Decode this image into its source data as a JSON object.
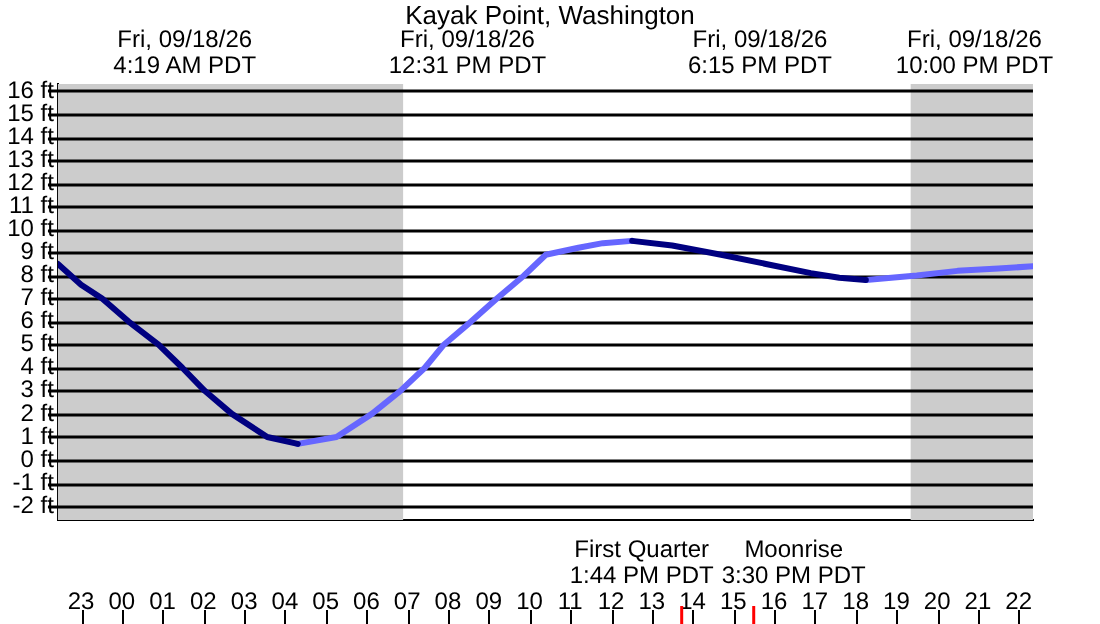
{
  "chart_data": {
    "type": "line",
    "title": "Kayak Point, Washington",
    "series": [
      {
        "color": "#000080",
        "x": [
          "--09-17T22:26",
          "--09-17T23:00",
          "--09-17T23:31",
          "--09-18T00:10",
          "--09-18T00:54",
          "--09-18T01:29",
          "--09-18T02:02",
          "--09-18T02:42",
          "--09-18T03:34",
          "--09-18T04:19",
          "--09-18T04:20",
          "--09-18T12:31",
          "--09-18T13:30",
          "--09-18T14:42",
          "--09-18T15:48",
          "--09-18T16:54",
          "--09-18T17:36",
          "--09-18T18:15"
        ],
        "values": [
          8.5,
          7.6,
          7,
          6,
          5,
          4,
          3,
          2,
          1,
          0.7,
          null,
          9.5,
          9.3,
          8.9,
          8.5,
          8.1,
          7.9,
          7.8
        ]
      },
      {
        "color": "#6666ff",
        "x": [
          "--09-18T04:19",
          "--09-18T05:16",
          "--09-18T06:08",
          "--09-18T06:50",
          "--09-18T07:26",
          "--09-18T07:54",
          "--09-18T08:34",
          "--09-18T09:12",
          "--09-18T09:52",
          "--09-18T10:24",
          "--09-18T11:12",
          "--09-18T11:48",
          "--09-18T12:31",
          "--09-18T12:32",
          "--09-18T18:15",
          "--09-18T19:30",
          "--09-18T20:30",
          "--09-18T21:30",
          "--09-18T22:21"
        ],
        "values": [
          0.7,
          1,
          2,
          3,
          4,
          5,
          6,
          7,
          8,
          8.9,
          9.2,
          9.4,
          9.5,
          null,
          7.8,
          8.0,
          8.2,
          8.3,
          8.4
        ]
      }
    ],
    "xlim": [
      "--09-17T22:26",
      "--09-18T22:21"
    ],
    "xticks": [
      {
        "value": "--09-17T23:00",
        "label": "23"
      },
      {
        "value": "--09-18T00:00",
        "label": "00"
      },
      {
        "value": "--09-18T01:00",
        "label": "01"
      },
      {
        "value": "--09-18T02:00",
        "label": "02"
      },
      {
        "value": "--09-18T03:00",
        "label": "03"
      },
      {
        "value": "--09-18T04:00",
        "label": "04"
      },
      {
        "value": "--09-18T05:00",
        "label": "05"
      },
      {
        "value": "--09-18T06:00",
        "label": "06"
      },
      {
        "value": "--09-18T07:00",
        "label": "07"
      },
      {
        "value": "--09-18T08:00",
        "label": "08"
      },
      {
        "value": "--09-18T09:00",
        "label": "09"
      },
      {
        "value": "--09-18T10:00",
        "label": "10"
      },
      {
        "value": "--09-18T11:00",
        "label": "11"
      },
      {
        "value": "--09-18T12:00",
        "label": "12"
      },
      {
        "value": "--09-18T13:00",
        "label": "13"
      },
      {
        "value": "--09-18T14:00",
        "label": "14"
      },
      {
        "value": "--09-18T15:00",
        "label": "15"
      },
      {
        "value": "--09-18T16:00",
        "label": "16"
      },
      {
        "value": "--09-18T17:00",
        "label": "17"
      },
      {
        "value": "--09-18T18:00",
        "label": "18"
      },
      {
        "value": "--09-18T19:00",
        "label": "19"
      },
      {
        "value": "--09-18T20:00",
        "label": "20"
      },
      {
        "value": "--09-18T21:00",
        "label": "21"
      },
      {
        "value": "--09-18T22:00",
        "label": "22"
      }
    ],
    "ylim": [
      -2.6,
      16.3
    ],
    "yticks": [
      {
        "value": -2,
        "label": "-2 ft"
      },
      {
        "value": -1,
        "label": "-1 ft"
      },
      {
        "value": 0,
        "label": "0 ft"
      },
      {
        "value": 1,
        "label": "1 ft"
      },
      {
        "value": 2,
        "label": "2 ft"
      },
      {
        "value": 3,
        "label": "3 ft"
      },
      {
        "value": 4,
        "label": "4 ft"
      },
      {
        "value": 5,
        "label": "5 ft"
      },
      {
        "value": 6,
        "label": "6 ft"
      },
      {
        "value": 7,
        "label": "7 ft"
      },
      {
        "value": 8,
        "label": "8 ft"
      },
      {
        "value": 9,
        "label": "9 ft"
      },
      {
        "value": 10,
        "label": "10 ft"
      },
      {
        "value": 11,
        "label": "11 ft"
      },
      {
        "value": 12,
        "label": "12 ft"
      },
      {
        "value": 13,
        "label": "13 ft"
      },
      {
        "value": 14,
        "label": "14 ft"
      },
      {
        "value": 15,
        "label": "15 ft"
      },
      {
        "value": 16,
        "label": "16 ft"
      }
    ],
    "bands": [
      {
        "axis": "x",
        "from": "--09-17T22:26",
        "to": "--09-18T06:54",
        "color": "#cccccc"
      },
      {
        "axis": "x",
        "from": "--09-18T19:21",
        "to": "--09-18T22:21",
        "color": "#cccccc"
      }
    ],
    "ref_lines": [
      {
        "axis": "x",
        "value": "--09-18T13:44",
        "label": "First Quarter\n1:44 PM PDT",
        "color": "#ff0000"
      },
      {
        "axis": "x",
        "value": "--09-18T15:30",
        "label": "Moonrise\n3:30 PM PDT",
        "color": "#ff0000"
      }
    ],
    "annotations": [
      "Fri, 09/18/26\n4:19 AM PDT",
      "Fri, 09/18/26\n12:31 PM PDT",
      "Fri, 09/18/26\n6:15 PM PDT",
      "Fri, 09/18/26\n10:00 PM PDT"
    ],
    "grid": "y",
    "legend": false,
    "marker": "none",
    "line_style": "solid"
  }
}
